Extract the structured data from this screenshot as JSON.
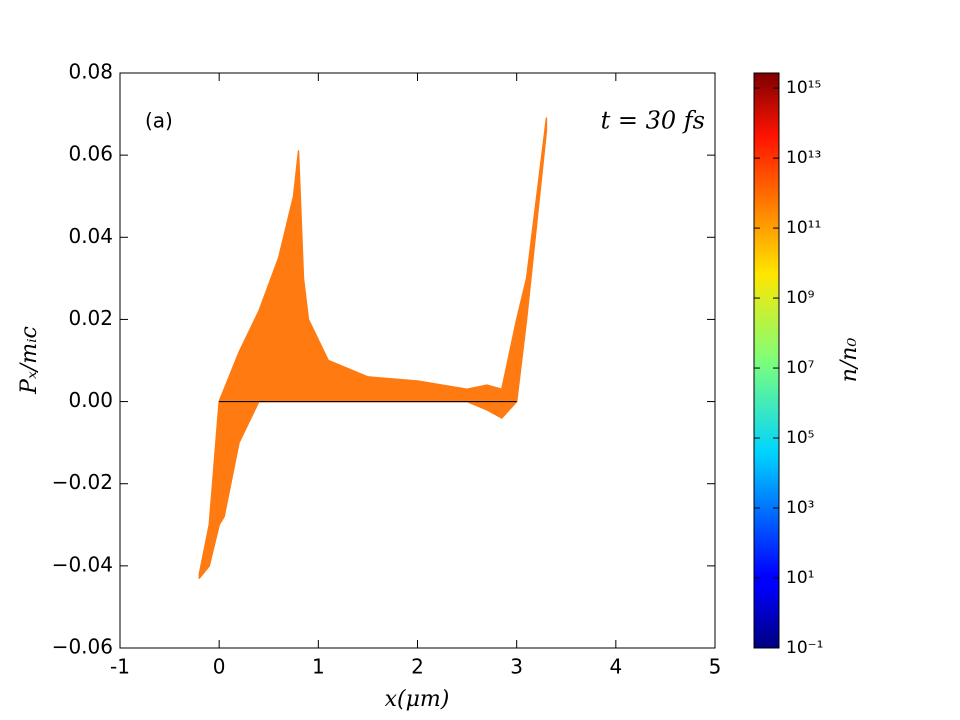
{
  "chart_data": {
    "type": "area",
    "x": [
      -0.2,
      -0.1,
      0,
      0.05,
      0.2,
      0.4,
      0.6,
      0.75,
      0.8,
      0.85,
      0.9,
      1.1,
      1.5,
      2,
      2.5,
      2.7,
      2.85,
      3.0,
      3.1,
      3.3
    ],
    "y_upper": [
      -0.042,
      -0.03,
      0.0,
      0.003,
      0.012,
      0.022,
      0.035,
      0.05,
      0.061,
      0.03,
      0.02,
      0.01,
      0.006,
      0.005,
      0.003,
      0.004,
      0.003,
      0.02,
      0.03,
      0.069
    ],
    "y_lower": [
      -0.043,
      -0.04,
      -0.03,
      -0.028,
      -0.01,
      0,
      0,
      0,
      0,
      0,
      0,
      0,
      0,
      0,
      0,
      -0.002,
      -0.004,
      0.0,
      0.02,
      0.066
    ],
    "color": "#ff7a10",
    "baseline": {
      "x": [
        0,
        3
      ],
      "y": [
        0,
        0
      ],
      "color": "#000000"
    },
    "xlim": [
      -1,
      5
    ],
    "xticks": [
      -1,
      0,
      1,
      2,
      3,
      4,
      5
    ],
    "ylim": [
      -0.06,
      0.08
    ],
    "yticks": [
      {
        "value": -0.06,
        "label": "−0.06"
      },
      {
        "value": -0.04,
        "label": "−0.04"
      },
      {
        "value": -0.02,
        "label": "−0.02"
      },
      {
        "value": 0,
        "label": "0.00"
      },
      0.02,
      0.04,
      0.06,
      0.08
    ],
    "xlabel": "x(μm)",
    "ylabel": "Pₓ/mᵢc",
    "annotations": [
      "(a)",
      "t = 30 fs"
    ],
    "colorbar": {
      "colormap": "jet",
      "log": true,
      "label": "n/n₀",
      "clim": [
        0.1,
        2700000000000000.0
      ],
      "ticks": [
        {
          "value": 0.1,
          "label": "10⁻¹"
        },
        {
          "value": 10,
          "label": "10¹"
        },
        {
          "value": 1000,
          "label": "10³"
        },
        {
          "value": 100000,
          "label": "10⁵"
        },
        {
          "value": 10000000,
          "label": "10⁷"
        },
        {
          "value": 1000000000,
          "label": "10⁹"
        },
        {
          "value": 100000000000,
          "label": "10¹¹"
        },
        {
          "value": 10000000000000,
          "label": "10¹³"
        },
        {
          "value": 1000000000000000,
          "label": "10¹⁵"
        }
      ]
    }
  }
}
